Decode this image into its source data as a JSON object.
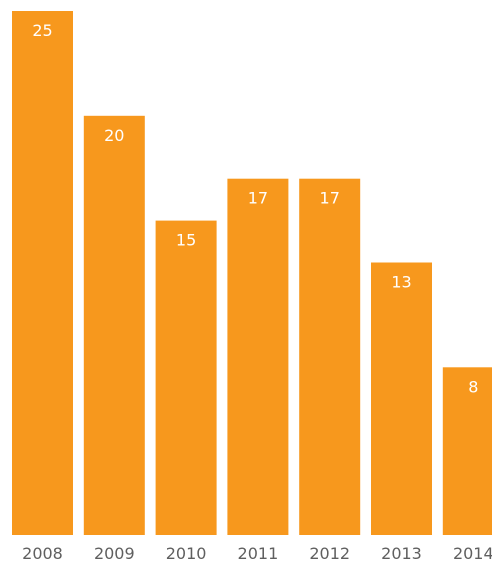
{
  "chart_data": {
    "type": "bar",
    "title": "",
    "xlabel": "",
    "ylabel": "",
    "categories": [
      "2008",
      "2009",
      "2010",
      "2011",
      "2012",
      "2013",
      "2014"
    ],
    "values": [
      25,
      20,
      15,
      17,
      17,
      13,
      8
    ],
    "ylim": [
      0,
      25
    ],
    "grid": false,
    "legend": "none",
    "data_labels": "inside-top",
    "colors": {
      "bar": "#F7981D",
      "value_label": "#FFFFFF",
      "tick_label": "#5F5F5F",
      "background": "#FFFFFF"
    }
  }
}
